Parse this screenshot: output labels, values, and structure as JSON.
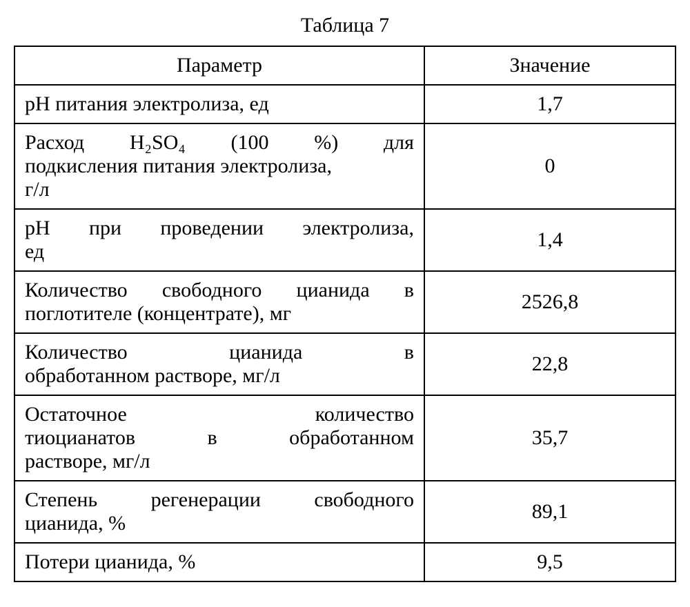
{
  "table": {
    "title": "Таблица 7",
    "headers": {
      "param": "Параметр",
      "value": "Значение"
    },
    "rows": [
      {
        "param_lines": [
          "pH питания электролиза, ед"
        ],
        "value": "1,7",
        "single_line": true
      },
      {
        "param_lines": [
          "Расход H₂SO₄ (100 %) для",
          "подкисления питания электролиза,",
          "г/л"
        ],
        "value": "0",
        "single_line": false
      },
      {
        "param_lines": [
          "pH при проведении электролиза,",
          "ед"
        ],
        "value": "1,4",
        "single_line": false
      },
      {
        "param_lines": [
          "Количество свободного цианида в",
          "поглотителе (концентрате), мг"
        ],
        "value": "2526,8",
        "single_line": false
      },
      {
        "param_lines": [
          "Количество цианида в",
          "обработанном растворе, мг/л"
        ],
        "value": "22,8",
        "single_line": false
      },
      {
        "param_lines": [
          "Остаточное количество",
          "тиоцианатов в обработанном",
          "растворе, мг/л"
        ],
        "value": "35,7",
        "single_line": false
      },
      {
        "param_lines": [
          "Степень регенерации свободного",
          "цианида, %"
        ],
        "value": "89,1",
        "single_line": false
      },
      {
        "param_lines": [
          "Потери цианида, %"
        ],
        "value": "9,5",
        "single_line": true
      }
    ],
    "styling": {
      "border_color": "#000000",
      "border_width": 2.5,
      "background_color": "#ffffff",
      "font_family": "Times New Roman",
      "title_fontsize": 30,
      "cell_fontsize": 30,
      "param_col_width_pct": 62,
      "value_col_width_pct": 38
    }
  }
}
